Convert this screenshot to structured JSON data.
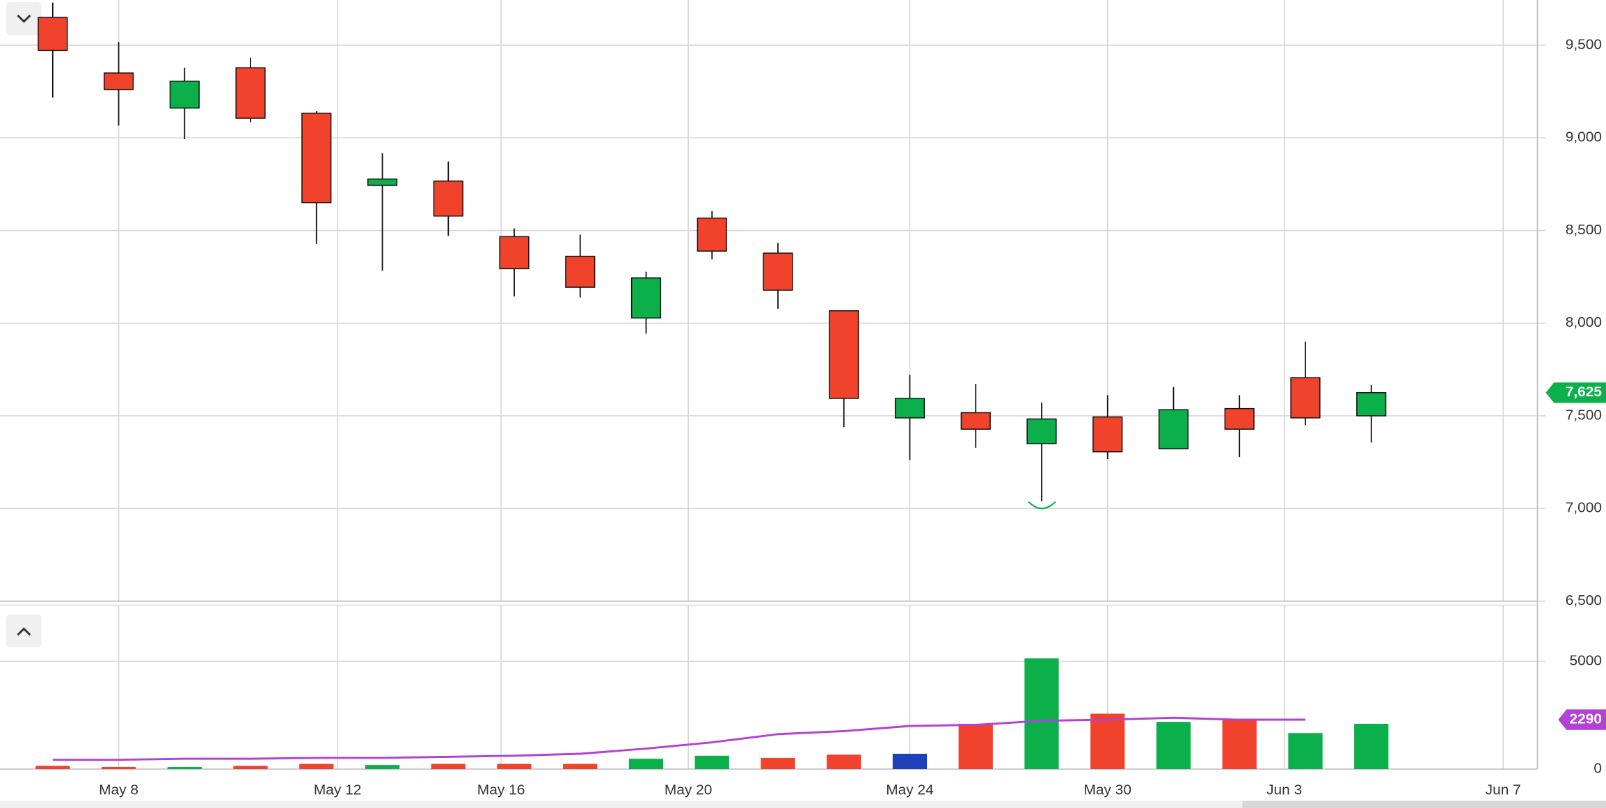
{
  "chart_data": [
    {
      "type": "candlestick",
      "x": [
        0,
        1,
        2,
        3,
        4,
        5,
        6,
        7,
        8,
        9,
        10,
        11,
        12,
        13,
        14,
        15,
        16,
        17,
        18,
        19,
        20
      ],
      "open": [
        9650,
        9350,
        9161,
        9378,
        9133,
        8744,
        8767,
        8467,
        8361,
        8028,
        8567,
        8378,
        8067,
        7489,
        7517,
        7350,
        7494,
        7322,
        7539,
        7706,
        7500
      ],
      "high": [
        9730,
        9517,
        9378,
        9433,
        9144,
        8917,
        8872,
        8511,
        8478,
        8278,
        8606,
        8433,
        8067,
        7722,
        7672,
        7572,
        7611,
        7656,
        7611,
        7900,
        7667
      ],
      "low": [
        9217,
        9067,
        8994,
        9083,
        8428,
        8283,
        8472,
        8144,
        8139,
        7944,
        8344,
        8078,
        7439,
        7261,
        7328,
        7039,
        7267,
        7322,
        7278,
        7450,
        7356
      ],
      "close": [
        9472,
        9261,
        9306,
        9106,
        8650,
        8778,
        8578,
        8294,
        8194,
        8244,
        8389,
        8178,
        7594,
        7594,
        7428,
        7483,
        7306,
        7533,
        7428,
        7489,
        7625
      ],
      "up_color": "#0bb04b",
      "down_color": "#f1432b",
      "last_price_label": "7,625",
      "xlim": [
        -0.8,
        22.52
      ],
      "xticks": [
        {
          "value": 1.0,
          "label": "May 8"
        },
        {
          "value": 4.32,
          "label": "May 12"
        },
        {
          "value": 6.8,
          "label": "May 16"
        },
        {
          "value": 9.64,
          "label": "May 20"
        },
        {
          "value": 13.0,
          "label": "May 24"
        },
        {
          "value": 16.0,
          "label": "May 30"
        },
        {
          "value": 18.68,
          "label": "Jun 3"
        },
        {
          "value": 22.0,
          "label": "Jun 7"
        }
      ],
      "ylim": [
        6500,
        9744
      ],
      "yticks": [
        {
          "value": 6500,
          "label": "6,500"
        },
        {
          "value": 7000,
          "label": "7,000"
        },
        {
          "value": 7500,
          "label": "7,500"
        },
        {
          "value": 8000,
          "label": "8,000"
        },
        {
          "value": 8500,
          "label": "8,500"
        },
        {
          "value": 9000,
          "label": "9,000"
        },
        {
          "value": 9500,
          "label": "9,500"
        }
      ],
      "grid": true
    },
    {
      "type": "bar",
      "values": [
        150,
        100,
        100,
        150,
        240,
        190,
        240,
        240,
        240,
        480,
        620,
        520,
        670,
        710,
        2100,
        5140,
        2570,
        2190,
        2290,
        1670,
        2100
      ],
      "colors": [
        "#f1432b",
        "#f1432b",
        "#0bb04b",
        "#f1432b",
        "#f1432b",
        "#0bb04b",
        "#f1432b",
        "#f1432b",
        "#f1432b",
        "#0bb04b",
        "#0bb04b",
        "#f1432b",
        "#f1432b",
        "#1e40b8",
        "#f1432b",
        "#0bb04b",
        "#f1432b",
        "#0bb04b",
        "#f1432b",
        "#0bb04b",
        "#0bb04b"
      ],
      "line_values": [
        430,
        430,
        480,
        480,
        520,
        520,
        570,
        620,
        710,
        950,
        1240,
        1620,
        1760,
        2000,
        2050,
        2240,
        2290,
        2380,
        2290,
        2290,
        null
      ],
      "line_color": "#b341d6",
      "ylim": [
        0,
        7600
      ],
      "yticks": [
        0,
        5000
      ],
      "grid": true
    }
  ]
}
